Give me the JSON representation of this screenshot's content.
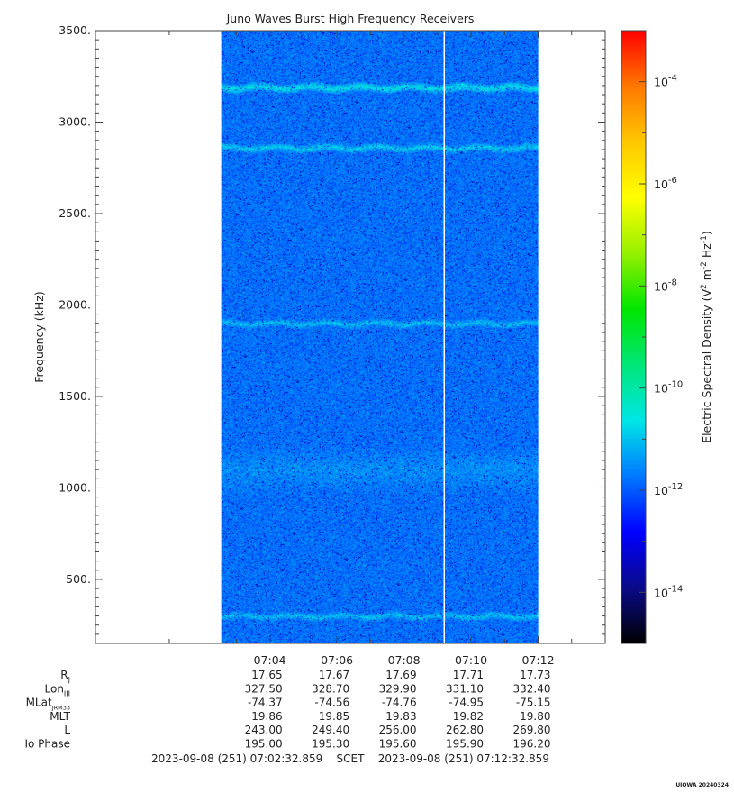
{
  "chart_data": {
    "type": "heatmap",
    "title": "Juno Waves Burst High Frequency Receivers",
    "ylabel": "Frequency (kHz)",
    "ylim": [
      150,
      3500
    ],
    "yticks": [
      500,
      1000,
      1500,
      2000,
      2500,
      3000,
      3500
    ],
    "ytick_labels": [
      "500.",
      "1000.",
      "1500.",
      "2000.",
      "2500.",
      "3000.",
      "3500."
    ],
    "x_range": [
      "06:58:48",
      "07:14:00"
    ],
    "data_span": [
      "07:02:33",
      "07:12:00"
    ],
    "xtick_labels": [
      "07:04",
      "07:06",
      "07:08",
      "07:10",
      "07:12"
    ],
    "data_gap_at": "07:09:12",
    "background_log_density": -11.8,
    "emission_bands": [
      {
        "frequency_khz": 3190,
        "log_density": -10.7
      },
      {
        "frequency_khz": 2860,
        "log_density": -10.9
      },
      {
        "frequency_khz": 1900,
        "log_density": -11.0
      },
      {
        "frequency_khz": 300,
        "log_density": -11.0
      },
      {
        "frequency_khz": 1100,
        "log_density": -11.5
      }
    ],
    "colorbar": {
      "label": "Electric Spectral Density (V",
      "label_sup1": "2",
      "label_mid": " m",
      "label_sup2": "-2",
      "label_mid2": " Hz",
      "label_sup3": "-1",
      "label_end": ")",
      "log_min": -15.0,
      "log_max": -3.0,
      "ticks": [
        {
          "value": -14,
          "base": "10",
          "exp": "-14"
        },
        {
          "value": -12,
          "base": "10",
          "exp": "-12"
        },
        {
          "value": -10,
          "base": "10",
          "exp": "-10"
        },
        {
          "value": -8,
          "base": "10",
          "exp": "-8"
        },
        {
          "value": -6,
          "base": "10",
          "exp": "-6"
        },
        {
          "value": -4,
          "base": "10",
          "exp": "-4"
        }
      ],
      "colors": [
        "#000000",
        "#0a0a8a",
        "#0000ff",
        "#0078ff",
        "#00e6e6",
        "#00e678",
        "#00e600",
        "#96f000",
        "#ffff00",
        "#ffc800",
        "#ff7800",
        "#ff0000"
      ]
    },
    "ephemeris": {
      "rows": [
        {
          "label": "R",
          "sub": "J",
          "values": [
            "17.65",
            "17.67",
            "17.69",
            "17.71",
            "17.73"
          ]
        },
        {
          "label": "Lon",
          "sub": "III",
          "values": [
            "327.50",
            "328.70",
            "329.90",
            "331.10",
            "332.40"
          ]
        },
        {
          "label": "MLat",
          "sub": "JRM33",
          "values": [
            "-74.37",
            "-74.56",
            "-74.76",
            "-74.95",
            "-75.15"
          ]
        },
        {
          "label": "MLT",
          "sub": "",
          "values": [
            "19.86",
            "19.85",
            "19.83",
            "19.82",
            "19.80"
          ]
        },
        {
          "label": "L",
          "sub": "",
          "values": [
            "243.00",
            "249.40",
            "256.00",
            "262.80",
            "269.80"
          ]
        },
        {
          "label": "Io Phase",
          "sub": "",
          "values": [
            "195.00",
            "195.30",
            "195.60",
            "195.90",
            "196.20"
          ]
        }
      ]
    },
    "time_range_text": "2023-09-08 (251) 07:02:32.859    SCET    2023-09-08 (251) 07:12:32.859",
    "credit": "UIOWA 20240324"
  }
}
